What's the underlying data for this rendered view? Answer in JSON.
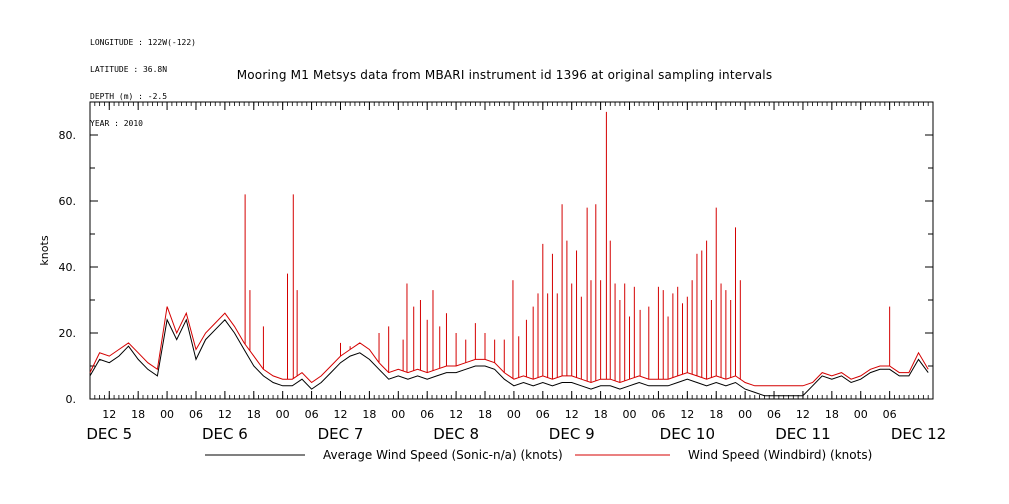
{
  "header": {
    "longitude": "LONGITUDE : 122W(-122)",
    "latitude": "LATITUDE : 36.8N",
    "depth": "DEPTH (m) : -2.5",
    "year": "YEAR : 2010"
  },
  "chart_data": {
    "type": "line",
    "title": "Mooring M1 Metsys data from MBARI instrument id 1396 at original sampling intervals",
    "ylabel": "knots",
    "xlabel": "",
    "x_unit": "hours since DEC 5 00:00 (2010)",
    "xlim": [
      8,
      183
    ],
    "ylim": [
      0,
      90
    ],
    "y_ticks": [
      0,
      20,
      40,
      60,
      80
    ],
    "y_tick_labels": [
      "0.",
      "20.",
      "40.",
      "60.",
      "80."
    ],
    "x_tick_labels": [
      "12",
      "18",
      "00",
      "06",
      "12",
      "18",
      "00",
      "06",
      "12",
      "18",
      "00",
      "06",
      "12",
      "18",
      "00",
      "06",
      "12",
      "18",
      "00",
      "06",
      "12",
      "18",
      "00",
      "06",
      "12",
      "18",
      "00",
      "06"
    ],
    "x_tick_hours": [
      12,
      18,
      24,
      30,
      36,
      42,
      48,
      54,
      60,
      66,
      72,
      78,
      84,
      90,
      96,
      102,
      108,
      114,
      120,
      126,
      132,
      138,
      144,
      150,
      156,
      162,
      168,
      174
    ],
    "day_labels": [
      "DEC  5",
      "DEC  6",
      "DEC  7",
      "DEC  8",
      "DEC  9",
      "DEC 10",
      "DEC 11",
      "DEC 12"
    ],
    "day_label_hours": [
      12,
      36,
      60,
      84,
      108,
      132,
      156,
      180
    ],
    "legend_placement": "bottom",
    "series": [
      {
        "name": "Average Wind Speed (Sonic-n/a) (knots)",
        "color": "#000000",
        "x": [
          8,
          10,
          12,
          14,
          16,
          18,
          20,
          22,
          24,
          26,
          28,
          30,
          32,
          34,
          36,
          38,
          40,
          42,
          44,
          46,
          48,
          50,
          52,
          54,
          56,
          58,
          60,
          62,
          64,
          66,
          68,
          70,
          72,
          74,
          76,
          78,
          80,
          82,
          84,
          86,
          88,
          90,
          92,
          94,
          96,
          98,
          100,
          102,
          104,
          106,
          108,
          110,
          112,
          114,
          116,
          118,
          120,
          122,
          124,
          126,
          128,
          130,
          132,
          134,
          136,
          138,
          140,
          142,
          144,
          146,
          148,
          150,
          152,
          154,
          156,
          158,
          160,
          162,
          164,
          166,
          168,
          170,
          172,
          174,
          176,
          178,
          180,
          182
        ],
        "y": [
          7,
          12,
          11,
          13,
          16,
          12,
          9,
          7,
          24,
          18,
          24,
          12,
          18,
          21,
          24,
          20,
          15,
          10,
          7,
          5,
          4,
          4,
          6,
          3,
          5,
          8,
          11,
          13,
          14,
          12,
          9,
          6,
          7,
          6,
          7,
          6,
          7,
          8,
          8,
          9,
          10,
          10,
          9,
          6,
          4,
          5,
          4,
          5,
          4,
          5,
          5,
          4,
          3,
          4,
          4,
          3,
          4,
          5,
          4,
          4,
          4,
          5,
          6,
          5,
          4,
          5,
          4,
          5,
          3,
          2,
          1,
          1,
          1,
          1,
          1,
          4,
          7,
          6,
          7,
          5,
          6,
          8,
          9,
          9,
          7,
          7,
          12,
          8
        ]
      },
      {
        "name": "Wind Speed (Windbird) (knots)",
        "color": "#d40000",
        "x": [
          8,
          10,
          12,
          14,
          16,
          18,
          20,
          22,
          24,
          26,
          28,
          30,
          32,
          34,
          36,
          38,
          40,
          42,
          44,
          46,
          48,
          50,
          52,
          54,
          56,
          58,
          60,
          62,
          64,
          66,
          68,
          70,
          72,
          74,
          76,
          78,
          80,
          82,
          84,
          86,
          88,
          90,
          92,
          94,
          96,
          98,
          100,
          102,
          104,
          106,
          108,
          110,
          112,
          114,
          116,
          118,
          120,
          122,
          124,
          126,
          128,
          130,
          132,
          134,
          136,
          138,
          140,
          142,
          144,
          146,
          148,
          150,
          152,
          154,
          156,
          158,
          160,
          162,
          164,
          166,
          168,
          170,
          172,
          174,
          176,
          178,
          180,
          182
        ],
        "y": [
          8,
          14,
          13,
          15,
          17,
          14,
          11,
          9,
          28,
          20,
          26,
          15,
          20,
          23,
          26,
          22,
          17,
          13,
          9,
          7,
          6,
          6,
          8,
          5,
          7,
          10,
          13,
          15,
          17,
          15,
          11,
          8,
          9,
          8,
          9,
          8,
          9,
          10,
          10,
          11,
          12,
          12,
          11,
          8,
          6,
          7,
          6,
          7,
          6,
          7,
          7,
          6,
          5,
          6,
          6,
          5,
          6,
          7,
          6,
          6,
          6,
          7,
          8,
          7,
          6,
          7,
          6,
          7,
          5,
          4,
          4,
          4,
          4,
          4,
          4,
          5,
          8,
          7,
          8,
          6,
          7,
          9,
          10,
          10,
          8,
          8,
          14,
          9
        ],
        "spikes": [
          [
            40.2,
            62
          ],
          [
            41.2,
            33
          ],
          [
            44,
            22
          ],
          [
            49,
            38
          ],
          [
            50.2,
            62
          ],
          [
            51,
            33
          ],
          [
            60,
            17
          ],
          [
            62,
            16
          ],
          [
            68,
            20
          ],
          [
            70,
            22
          ],
          [
            73,
            18
          ],
          [
            73.8,
            35
          ],
          [
            75.2,
            28
          ],
          [
            76.6,
            30
          ],
          [
            78,
            24
          ],
          [
            79.2,
            33
          ],
          [
            80.6,
            22
          ],
          [
            82,
            26
          ],
          [
            84,
            20
          ],
          [
            86,
            18
          ],
          [
            88,
            23
          ],
          [
            90,
            20
          ],
          [
            92,
            18
          ],
          [
            94,
            18
          ],
          [
            95.8,
            36
          ],
          [
            97,
            19
          ],
          [
            98.6,
            24
          ],
          [
            100,
            28
          ],
          [
            101,
            32
          ],
          [
            102,
            47
          ],
          [
            103,
            32
          ],
          [
            104,
            44
          ],
          [
            105,
            32
          ],
          [
            106,
            59
          ],
          [
            107,
            48
          ],
          [
            108,
            35
          ],
          [
            109,
            45
          ],
          [
            110,
            31
          ],
          [
            111.2,
            58
          ],
          [
            112,
            36
          ],
          [
            113,
            59
          ],
          [
            114,
            36
          ],
          [
            115.2,
            87
          ],
          [
            116,
            48
          ],
          [
            117,
            35
          ],
          [
            118,
            30
          ],
          [
            119,
            35
          ],
          [
            120,
            25
          ],
          [
            121,
            34
          ],
          [
            122.2,
            27
          ],
          [
            124,
            28
          ],
          [
            126,
            34
          ],
          [
            127,
            33
          ],
          [
            128,
            25
          ],
          [
            129,
            32
          ],
          [
            130,
            34
          ],
          [
            131,
            29
          ],
          [
            132,
            31
          ],
          [
            133,
            36
          ],
          [
            134,
            44
          ],
          [
            135,
            45
          ],
          [
            136,
            48
          ],
          [
            137,
            30
          ],
          [
            138,
            58
          ],
          [
            139,
            35
          ],
          [
            140,
            33
          ],
          [
            141,
            30
          ],
          [
            142,
            52
          ],
          [
            143,
            36
          ],
          [
            174,
            28
          ]
        ]
      }
    ]
  }
}
